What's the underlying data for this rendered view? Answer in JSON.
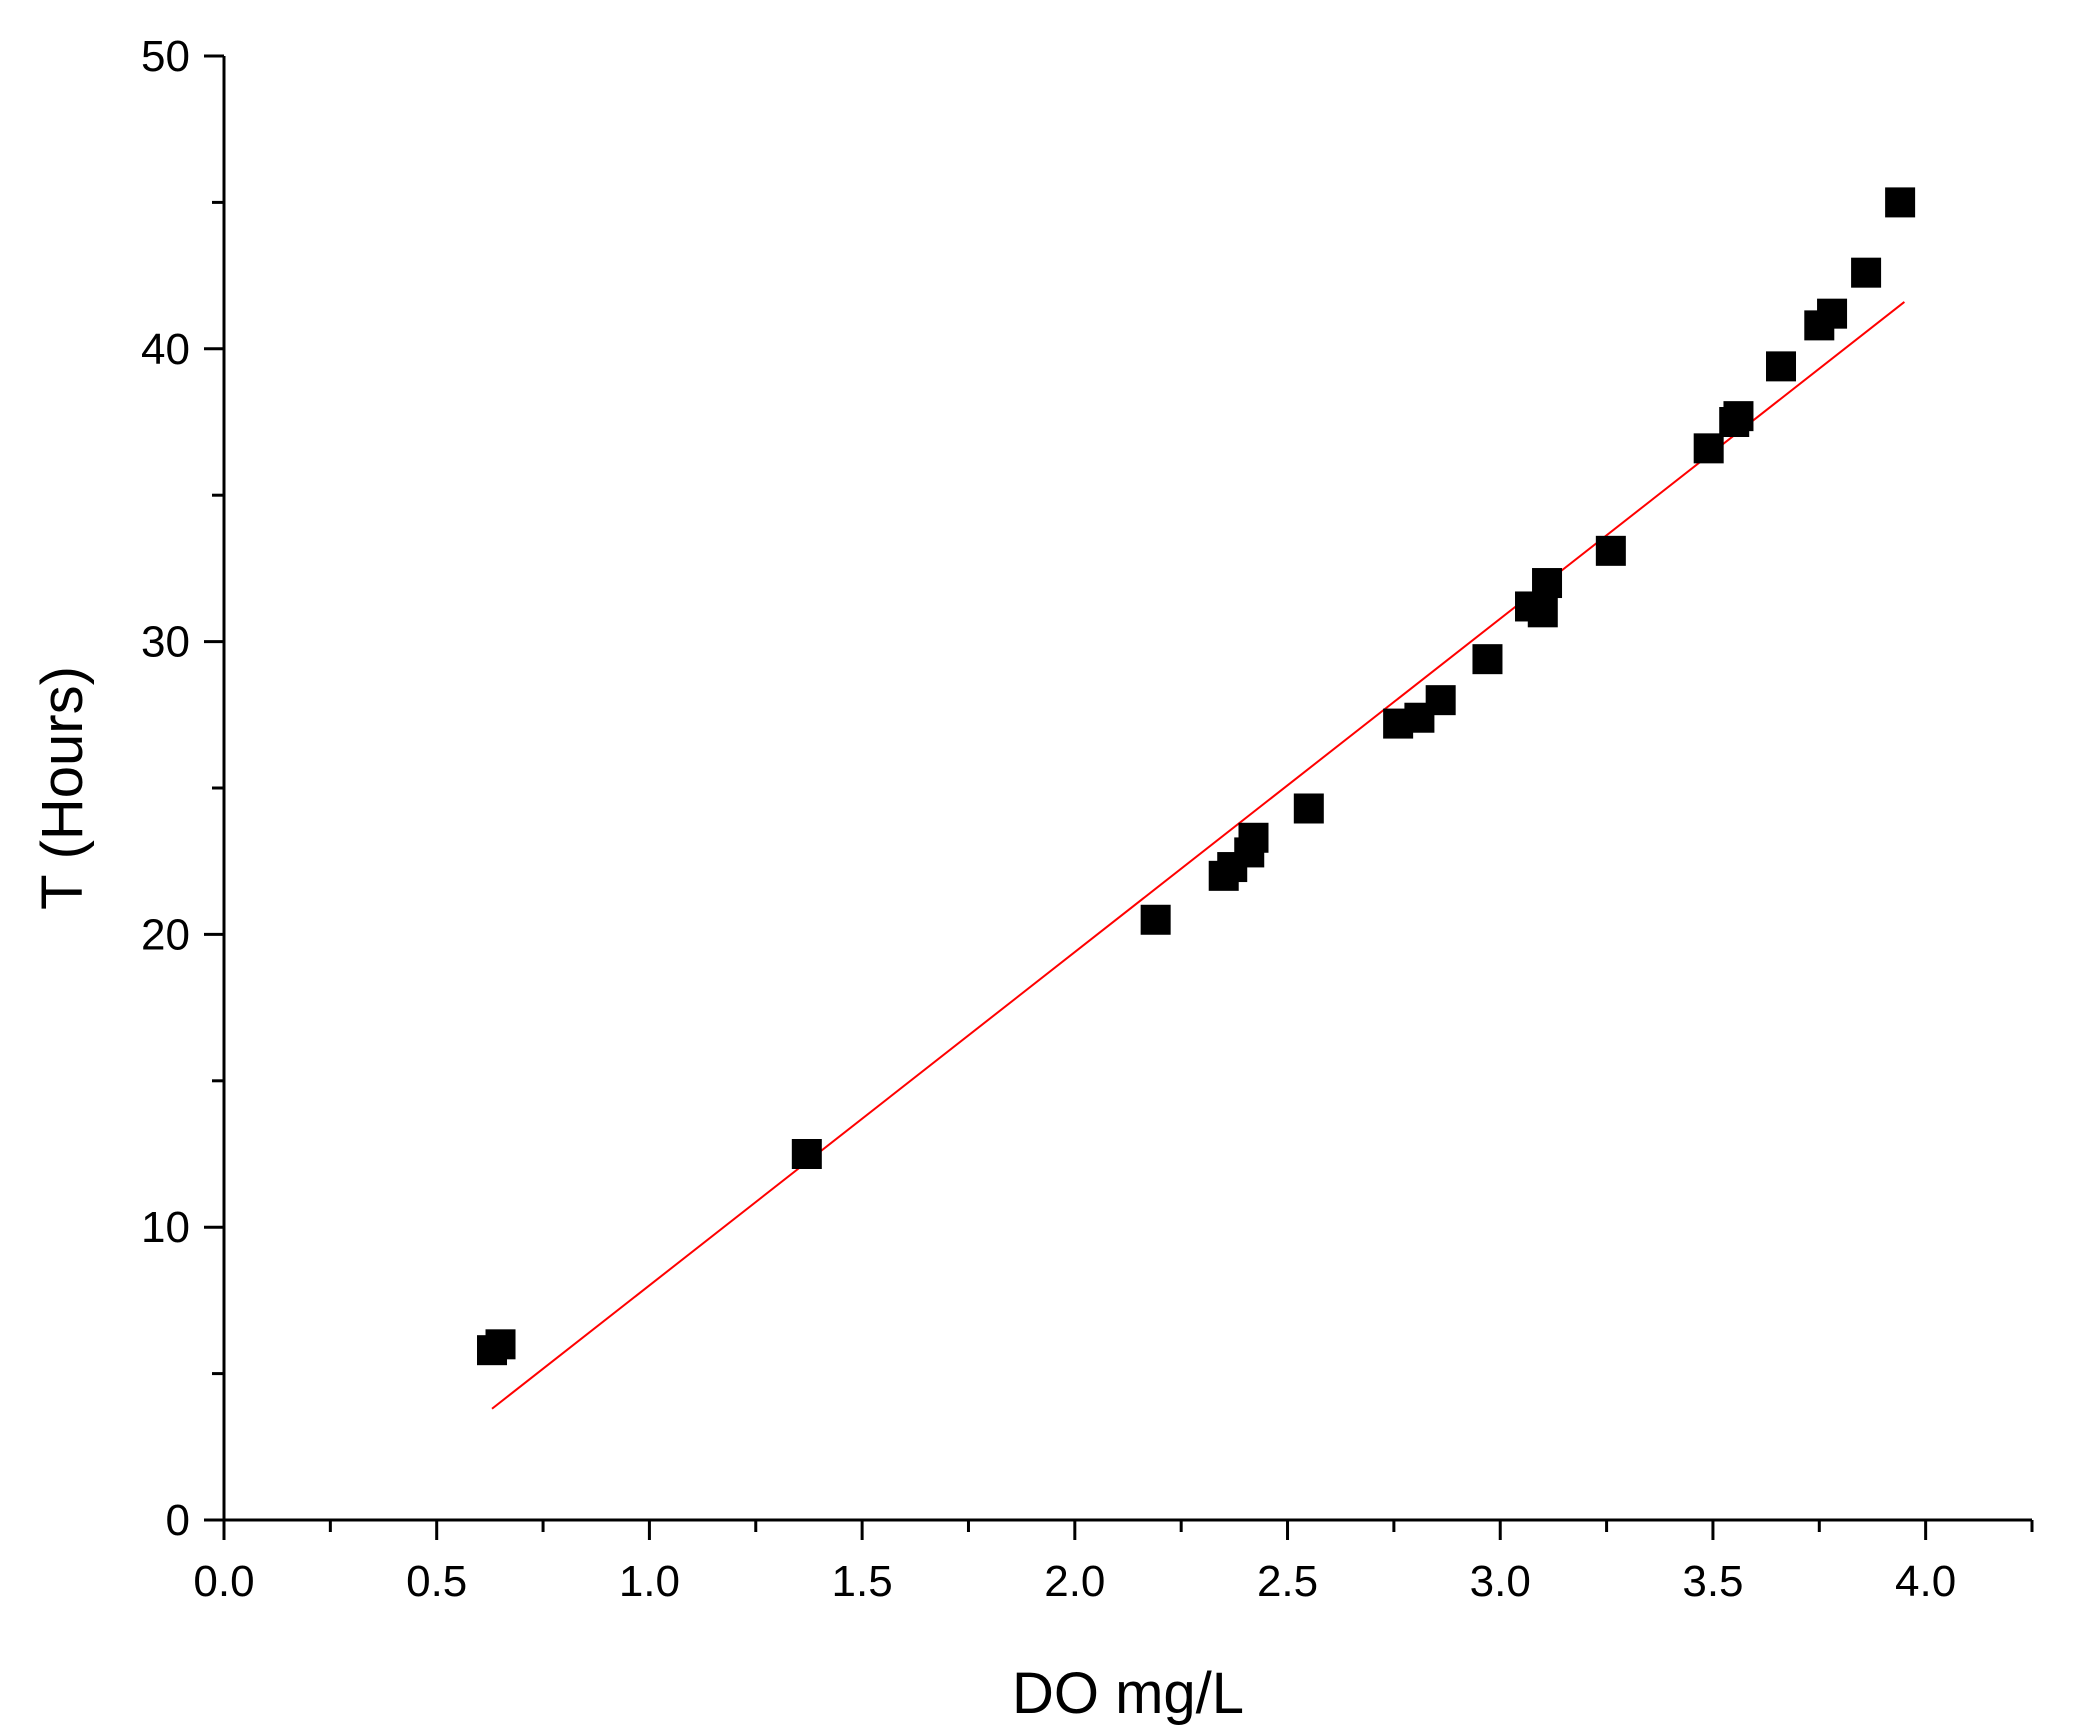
{
  "chart_data": {
    "type": "scatter",
    "title": "",
    "xlabel": "DO mg/L",
    "ylabel": "T (Hours)",
    "xlim": [
      0.0,
      4.25
    ],
    "ylim": [
      0,
      50
    ],
    "x_ticks": [
      "0.0",
      "0.5",
      "1.0",
      "1.5",
      "2.0",
      "2.5",
      "3.0",
      "3.5",
      "4.0"
    ],
    "y_ticks": [
      "0",
      "10",
      "20",
      "30",
      "40",
      "50"
    ],
    "grid": false,
    "legend": "none",
    "marker": "square",
    "marker_color": "#000000",
    "points": [
      {
        "x": 0.63,
        "y": 5.8
      },
      {
        "x": 0.65,
        "y": 6.0
      },
      {
        "x": 1.37,
        "y": 12.5
      },
      {
        "x": 2.19,
        "y": 20.5
      },
      {
        "x": 2.35,
        "y": 22.0
      },
      {
        "x": 2.37,
        "y": 22.3
      },
      {
        "x": 2.41,
        "y": 22.8
      },
      {
        "x": 2.42,
        "y": 23.3
      },
      {
        "x": 2.55,
        "y": 24.3
      },
      {
        "x": 2.76,
        "y": 27.2
      },
      {
        "x": 2.81,
        "y": 27.4
      },
      {
        "x": 2.86,
        "y": 28.0
      },
      {
        "x": 2.97,
        "y": 29.4
      },
      {
        "x": 3.07,
        "y": 31.2
      },
      {
        "x": 3.1,
        "y": 31.0
      },
      {
        "x": 3.11,
        "y": 32.0
      },
      {
        "x": 3.26,
        "y": 33.1
      },
      {
        "x": 3.49,
        "y": 36.6
      },
      {
        "x": 3.55,
        "y": 37.5
      },
      {
        "x": 3.56,
        "y": 37.7
      },
      {
        "x": 3.66,
        "y": 39.4
      },
      {
        "x": 3.75,
        "y": 40.8
      },
      {
        "x": 3.78,
        "y": 41.2
      },
      {
        "x": 3.86,
        "y": 42.6
      },
      {
        "x": 3.94,
        "y": 45.0
      }
    ],
    "fit_line": {
      "color": "#ff0000",
      "start": {
        "x": 0.63,
        "y": 3.8
      },
      "end": {
        "x": 3.95,
        "y": 41.6
      }
    }
  }
}
